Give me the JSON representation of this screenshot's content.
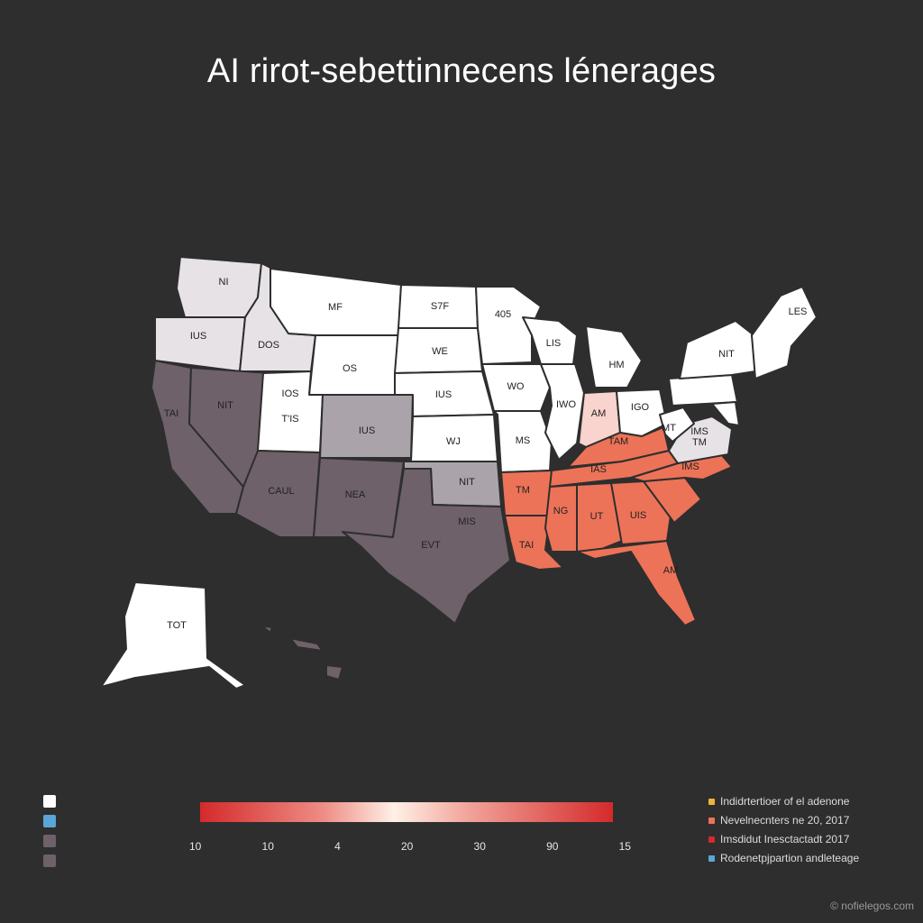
{
  "title": "AI rirot-sebettinnecens lénerages",
  "colors": {
    "background": "#2e2e2e",
    "white": "#ffffff",
    "light_gray": "#e6e2e6",
    "mid_gray": "#aaa3aa",
    "dark_mauve": "#6e6169",
    "coral": "#ec7358",
    "pink": "#f9d3cd"
  },
  "states": [
    {
      "id": "wa",
      "label": "NI",
      "color": "light_gray"
    },
    {
      "id": "or",
      "label": "IUS",
      "color": "light_gray"
    },
    {
      "id": "id",
      "label": "DOS",
      "color": "light_gray"
    },
    {
      "id": "mt",
      "label": "MF",
      "color": "white"
    },
    {
      "id": "wy",
      "label": "OS",
      "color": "white"
    },
    {
      "id": "ca",
      "label": "",
      "color": "dark_mauve"
    },
    {
      "id": "nv",
      "label": "NIT",
      "color": "dark_mauve"
    },
    {
      "id": "ut",
      "label": "T'IS",
      "color": "white"
    },
    {
      "id": "co",
      "label": "IUS",
      "color": "mid_gray"
    },
    {
      "id": "az",
      "label": "CAUL",
      "color": "dark_mauve"
    },
    {
      "id": "nm",
      "label": "NEA",
      "color": "dark_mauve"
    },
    {
      "id": "nd",
      "label": "S7F",
      "color": "white"
    },
    {
      "id": "sd",
      "label": "WE",
      "color": "white"
    },
    {
      "id": "ne",
      "label": "IUS",
      "color": "white"
    },
    {
      "id": "ks",
      "label": "WJ",
      "color": "white"
    },
    {
      "id": "ok",
      "label": "NIT",
      "color": "mid_gray"
    },
    {
      "id": "tx",
      "label": "EVT",
      "color": "dark_mauve"
    },
    {
      "id": "mn",
      "label": "405",
      "color": "white"
    },
    {
      "id": "ia",
      "label": "WO",
      "color": "white"
    },
    {
      "id": "mo",
      "label": "MS",
      "color": "white"
    },
    {
      "id": "ar",
      "label": "TM",
      "color": "coral"
    },
    {
      "id": "la",
      "label": "TAI",
      "color": "coral"
    },
    {
      "id": "wi",
      "label": "LIS",
      "color": "white"
    },
    {
      "id": "il",
      "label": "IWO",
      "color": "white"
    },
    {
      "id": "mi",
      "label": "HM",
      "color": "white"
    },
    {
      "id": "in",
      "label": "AM",
      "color": "pink"
    },
    {
      "id": "oh",
      "label": "IGO",
      "color": "white"
    },
    {
      "id": "ky",
      "label": "TAM",
      "color": "coral"
    },
    {
      "id": "tn",
      "label": "IAS",
      "color": "coral"
    },
    {
      "id": "ms",
      "label": "NG",
      "color": "coral"
    },
    {
      "id": "al",
      "label": "UT",
      "color": "coral"
    },
    {
      "id": "ga",
      "label": "UIS",
      "color": "coral"
    },
    {
      "id": "fl",
      "label": "AM",
      "color": "coral"
    },
    {
      "id": "sc",
      "label": "",
      "color": "coral"
    },
    {
      "id": "nc",
      "label": "IMS",
      "color": "coral"
    },
    {
      "id": "va",
      "label": "",
      "color": "light_gray"
    },
    {
      "id": "wv",
      "label": "MT",
      "color": "white"
    },
    {
      "id": "pa",
      "label": "",
      "color": "white"
    },
    {
      "id": "ny",
      "label": "NIT",
      "color": "white"
    },
    {
      "id": "ne_states",
      "label": "LES",
      "color": "white"
    },
    {
      "id": "md",
      "label": "",
      "color": "white"
    },
    {
      "id": "ak",
      "label": "TOT",
      "color": "white"
    },
    {
      "id": "hi",
      "label": "",
      "color": "dark_mauve"
    }
  ],
  "extra_labels": {
    "va_small": "IMS",
    "va_small2": "TM",
    "ut_top": "IOS",
    "tx_small": "MIS",
    "ca_small": "TAI"
  },
  "swatch_legend": [
    "white",
    "#5aa6d6",
    "#6e6169",
    "#6e6169"
  ],
  "scale": {
    "ticks": [
      "10",
      "10",
      "4",
      "20",
      "30",
      "90",
      "15"
    ]
  },
  "legend": [
    {
      "label": "Indidrtertioer of el adenone",
      "color": "#f0b33a"
    },
    {
      "label": "Nevelnecnters ne 20, 2017",
      "color": "#ec7358"
    },
    {
      "label": "Imsdidut Inesctactadt 2017",
      "color": "#d42a2a"
    },
    {
      "label": "Rodenetpjpartion andleteage",
      "color": "#5aa6d6"
    }
  ],
  "credit": "© nofielegos.com"
}
